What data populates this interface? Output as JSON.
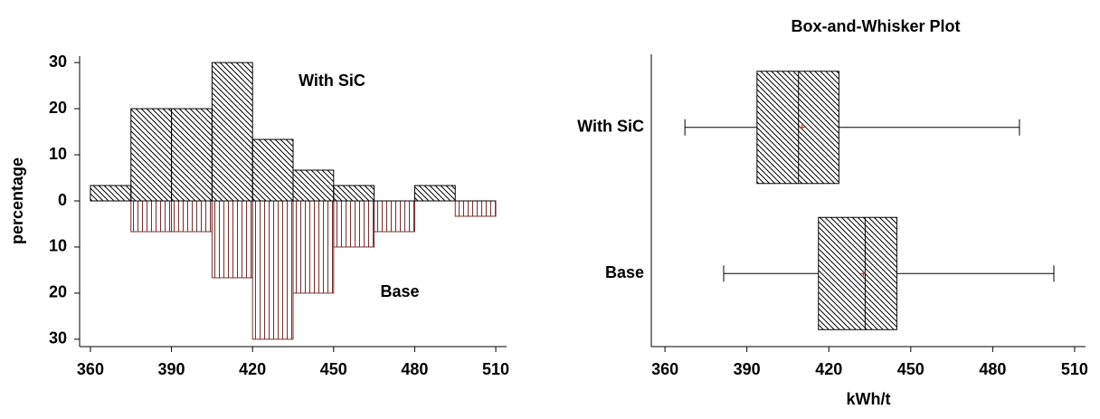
{
  "chart_data": [
    {
      "type": "mirrored_histogram",
      "ylabel": "percentage",
      "bins": [
        360,
        375,
        390,
        405,
        420,
        435,
        450,
        465,
        480,
        495,
        510
      ],
      "series": [
        {
          "name": "With SiC",
          "side": "up",
          "color": "#000000",
          "values": [
            3.33,
            20,
            20,
            30,
            13.33,
            6.67,
            3.33,
            0,
            3.33,
            0
          ]
        },
        {
          "name": "Base",
          "side": "down",
          "color": "#7a2e2e",
          "values": [
            0,
            6.67,
            6.67,
            16.67,
            30,
            20,
            10,
            6.67,
            0,
            3.33
          ]
        }
      ],
      "xlim": [
        356,
        514
      ],
      "xticks": [
        360,
        390,
        420,
        450,
        480,
        510
      ],
      "ylim": [
        0,
        31.4
      ],
      "yticks": [
        0,
        10,
        20,
        30
      ]
    },
    {
      "type": "boxplot",
      "title": "Box-and-Whisker Plot",
      "xlabel": "kWh/t",
      "categories": [
        "With SiC",
        "Base"
      ],
      "min": [
        367.3,
        381.5
      ],
      "q1": [
        393.7,
        416.2
      ],
      "median": [
        408.9,
        433.3
      ],
      "mean": [
        410.2,
        432.7
      ],
      "q3": [
        423.7,
        444.9
      ],
      "max": [
        489.8,
        502.4
      ],
      "color": "#000000",
      "mean_color": "#e03030",
      "xlim": [
        355,
        514
      ],
      "xticks": [
        360,
        390,
        420,
        450,
        480,
        510
      ]
    }
  ]
}
